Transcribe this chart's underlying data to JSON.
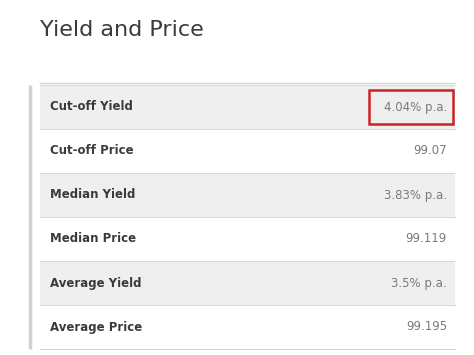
{
  "title": "Yield and Price",
  "title_fontsize": 16,
  "title_color": "#3a3a3a",
  "title_fontweight": "normal",
  "rows": [
    {
      "label": "Cut-off Yield",
      "value": "4.04% p.a.",
      "shaded": true,
      "highlight": true
    },
    {
      "label": "Cut-off Price",
      "value": "99.07",
      "shaded": false,
      "highlight": false
    },
    {
      "label": "Median Yield",
      "value": "3.83% p.a.",
      "shaded": true,
      "highlight": false
    },
    {
      "label": "Median Price",
      "value": "99.119",
      "shaded": false,
      "highlight": false
    },
    {
      "label": "Average Yield",
      "value": "3.5% p.a.",
      "shaded": true,
      "highlight": false
    },
    {
      "label": "Average Price",
      "value": "99.195",
      "shaded": false,
      "highlight": false
    }
  ],
  "bg_color": "#ffffff",
  "shaded_color": "#efefef",
  "label_color": "#3a3a3a",
  "value_color": "#7a7a7a",
  "label_fontsize": 8.5,
  "value_fontsize": 8.5,
  "label_fontweight": "bold",
  "value_fontweight": "normal",
  "highlight_box_color": "#cc2222",
  "divider_color": "#d0d0d0",
  "left_border_color": "#d8d0c8",
  "fig_width": 4.74,
  "fig_height": 3.55,
  "dpi": 100
}
